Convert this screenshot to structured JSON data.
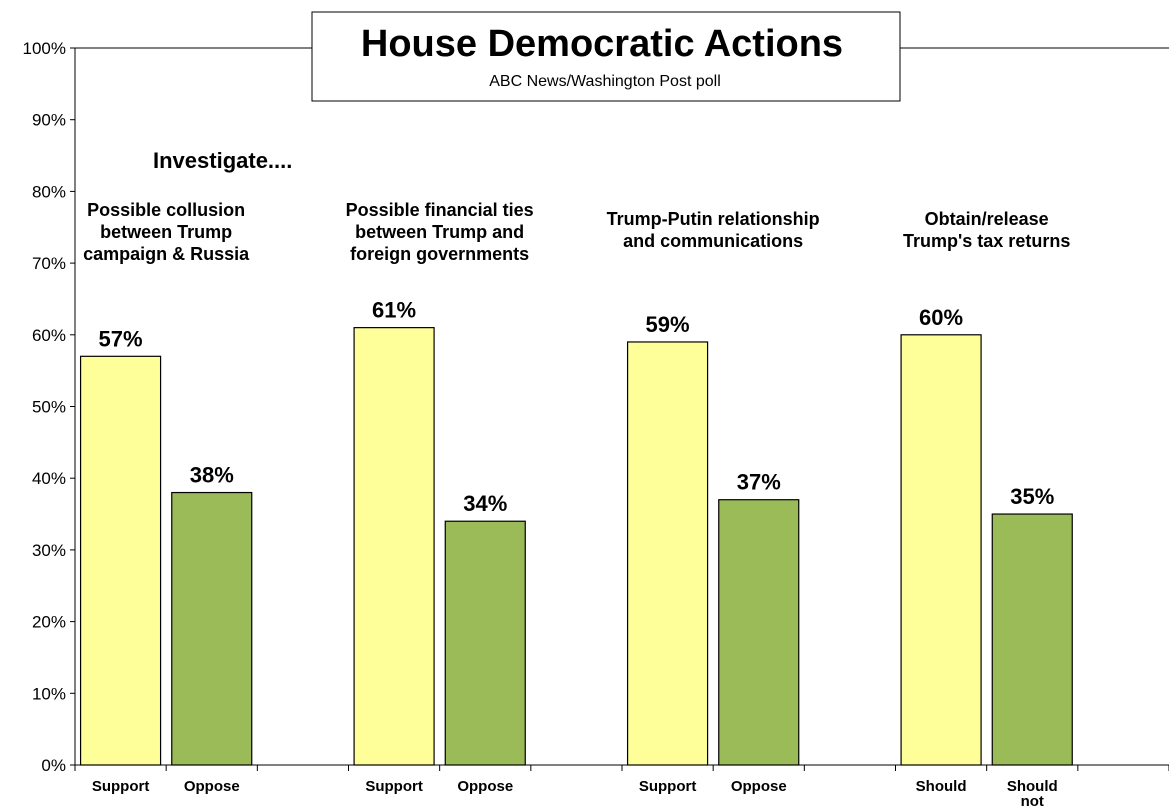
{
  "chart_data": {
    "type": "bar",
    "title": "House Democratic Actions",
    "subtitle": "ABC News/Washington  Post poll",
    "annotation": "Investigate....",
    "ylim": [
      0,
      100
    ],
    "y_ticks": [
      "0%",
      "10%",
      "20%",
      "30%",
      "40%",
      "50%",
      "60%",
      "70%",
      "80%",
      "90%",
      "100%"
    ],
    "grid": false,
    "colors": {
      "first": "#FFFF99",
      "second": "#9BBB59",
      "outline": "#000000"
    },
    "groups": [
      {
        "title": [
          "Possible collusion",
          "between Trump",
          "campaign & Russia"
        ],
        "bars": [
          {
            "label": [
              "Support"
            ],
            "value": 57,
            "value_label": "57%"
          },
          {
            "label": [
              "Oppose"
            ],
            "value": 38,
            "value_label": "38%"
          }
        ]
      },
      {
        "title": [
          "Possible financial ties",
          "between Trump and",
          "foreign governments"
        ],
        "bars": [
          {
            "label": [
              "Support"
            ],
            "value": 61,
            "value_label": "61%"
          },
          {
            "label": [
              "Oppose"
            ],
            "value": 34,
            "value_label": "34%"
          }
        ]
      },
      {
        "title": [
          "Trump-Putin relationship",
          "and communications"
        ],
        "bars": [
          {
            "label": [
              "Support"
            ],
            "value": 59,
            "value_label": "59%"
          },
          {
            "label": [
              "Oppose"
            ],
            "value": 37,
            "value_label": "37%"
          }
        ]
      },
      {
        "title": [
          "Obtain/release",
          "Trump's tax returns"
        ],
        "bars": [
          {
            "label": [
              "Should"
            ],
            "value": 60,
            "value_label": "60%"
          },
          {
            "label": [
              "Should",
              "not"
            ],
            "value": 35,
            "value_label": "35%"
          }
        ]
      }
    ]
  }
}
